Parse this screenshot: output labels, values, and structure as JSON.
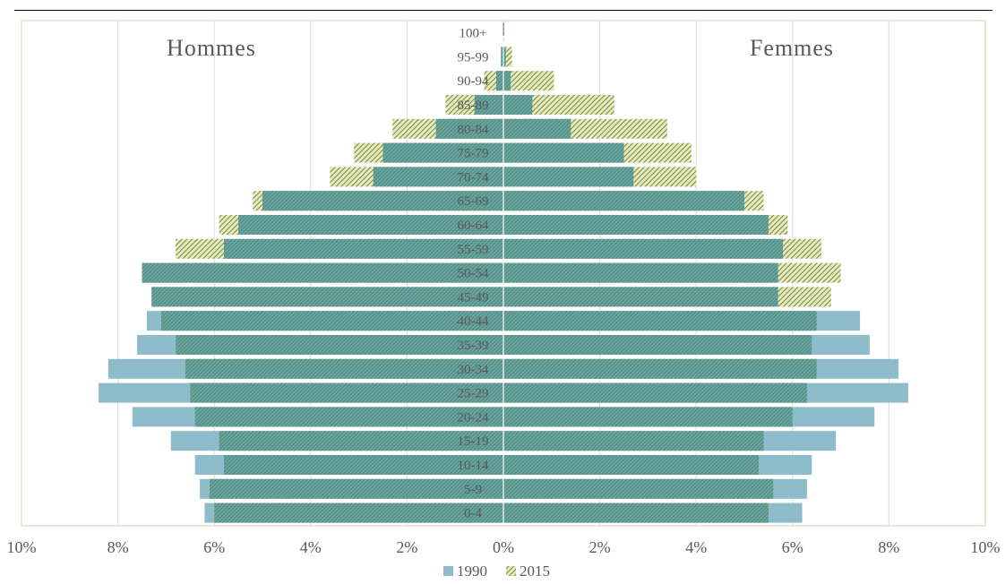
{
  "chart_data": {
    "type": "bar",
    "orientation": "horizontal",
    "subtype": "population-pyramid",
    "categories": [
      "0-4",
      "5-9",
      "10-14",
      "15-19",
      "20-24",
      "25-29",
      "30-34",
      "35-39",
      "40-44",
      "45-49",
      "50-54",
      "55-59",
      "60-64",
      "65-69",
      "70-74",
      "75-79",
      "80-84",
      "85-89",
      "90-94",
      "95-99",
      "100+"
    ],
    "labels": {
      "left": "Hommes",
      "right": "Femmes"
    },
    "x_ticks": [
      "10%",
      "8%",
      "6%",
      "4%",
      "2%",
      "0%",
      "2%",
      "4%",
      "6%",
      "8%",
      "10%"
    ],
    "xlim": [
      -10,
      10
    ],
    "grid": true,
    "legend_position": "bottom",
    "series": [
      {
        "name": "1990",
        "color": "#8fbccb",
        "pattern": "solid",
        "hommes": [
          6.2,
          6.3,
          6.4,
          6.9,
          7.7,
          8.4,
          8.2,
          7.6,
          7.4,
          7.3,
          7.5,
          5.8,
          5.5,
          5.0,
          2.7,
          2.5,
          1.4,
          0.6,
          0.15,
          0.05,
          0.01
        ],
        "femmes": [
          6.2,
          6.3,
          6.4,
          6.9,
          7.7,
          8.4,
          8.2,
          7.6,
          7.4,
          5.7,
          5.7,
          5.8,
          5.5,
          5.0,
          2.7,
          2.5,
          1.4,
          0.6,
          0.15,
          0.05,
          0.01
        ]
      },
      {
        "name": "2015",
        "color": "#8a9a3a",
        "pattern": "hatched",
        "hommes": [
          6.0,
          6.1,
          5.8,
          5.9,
          6.4,
          6.5,
          6.6,
          6.8,
          7.1,
          7.3,
          7.5,
          6.8,
          5.9,
          5.2,
          3.6,
          3.1,
          2.3,
          1.2,
          0.4,
          0.05,
          0.01
        ],
        "femmes": [
          5.5,
          5.6,
          5.3,
          5.4,
          6.0,
          6.3,
          6.5,
          6.4,
          6.5,
          6.8,
          7.0,
          6.6,
          5.9,
          5.4,
          4.0,
          3.9,
          3.4,
          2.3,
          1.05,
          0.18,
          0.02
        ]
      }
    ]
  }
}
